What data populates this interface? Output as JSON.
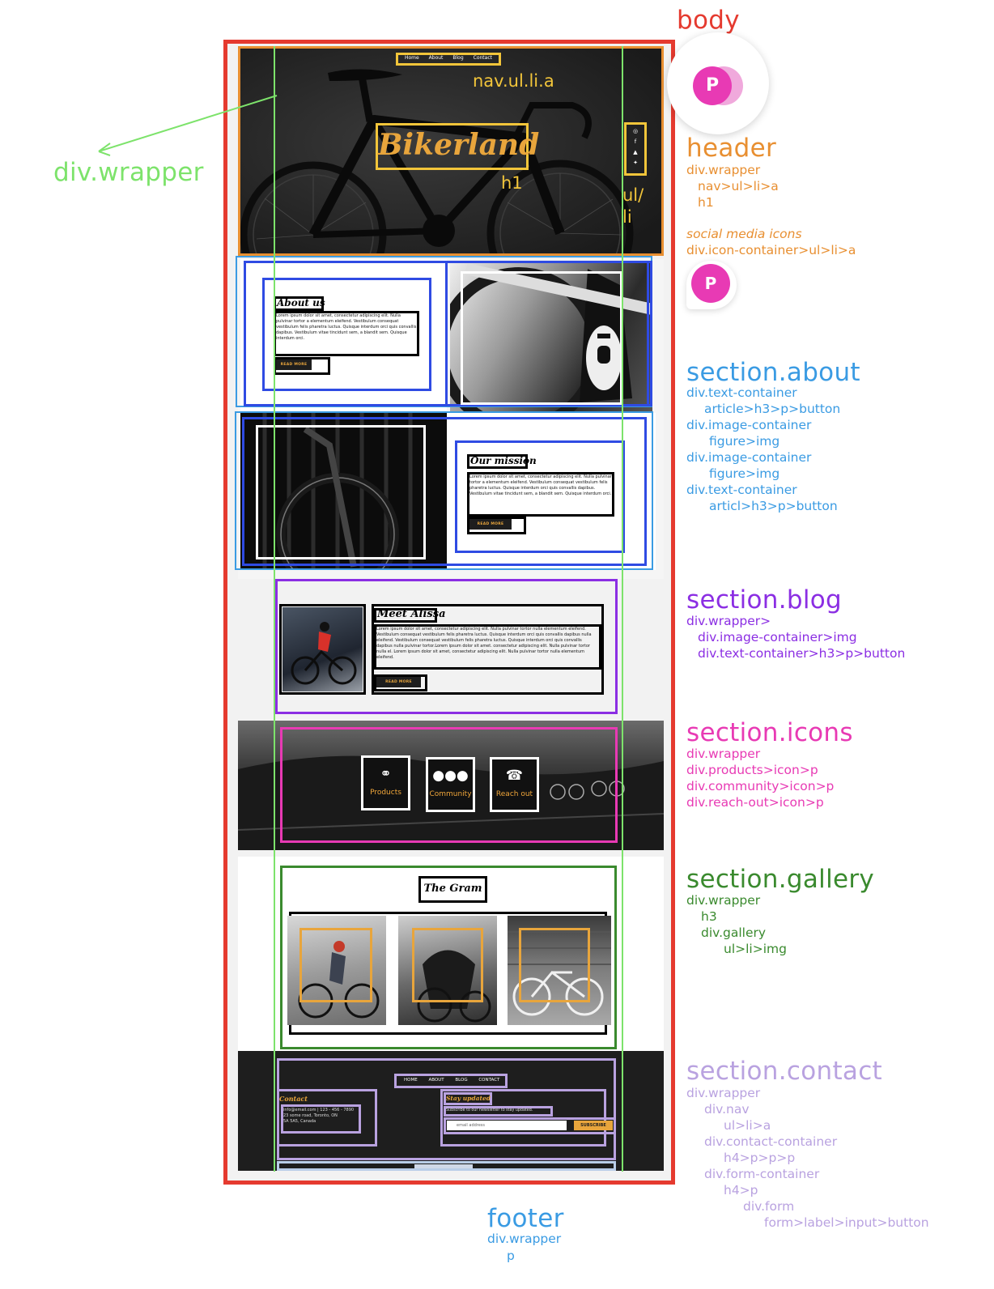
{
  "title": "body",
  "colors": {
    "body": "#e53a2f",
    "header": "#e88f31",
    "wrapper": "#7de36b",
    "about": "#3a9be3",
    "blog": "#8b2ee3",
    "icons": "#e83ab4",
    "gallery": "#3a8a2e",
    "contact": "#b9a2e0",
    "footer": "#3a9be3",
    "outline_yellow": "#f2c53a",
    "outline_blue": "#2f4be3",
    "outline_black": "#000000",
    "accent": "#e8a53c"
  },
  "wrapper_label": "div.wrapper",
  "avatar_letter": "P",
  "header": {
    "title": "header",
    "lines": [
      "div.wrapper",
      "nav>ul>li>a",
      "h1"
    ],
    "social_title": "social media icons",
    "social_line": "div.icon-container>ul>li>a",
    "mock_nav": [
      "Home",
      "About",
      "Blog",
      "Contact"
    ],
    "nav_label": "nav.ul.li.a",
    "logo": "Bikerland",
    "h1_label": "h1",
    "ul_label_1": "ul/",
    "ul_label_2": "li",
    "social_icons": [
      "instagram-icon",
      "facebook-icon",
      "snapchat-icon",
      "twitter-icon"
    ]
  },
  "about": {
    "title": "section.about",
    "lines": [
      "div.text-container",
      "article>h3>p>button",
      "div.image-container",
      "figure>img",
      "div.image-container",
      "figure>img",
      "div.text-container",
      "articl>h3>p>button"
    ],
    "about_heading": "About us",
    "about_text": "Lorem ipsum dolor sit amet, consectetur adipiscing elit. Nulla pulvinar tortor a elementum eleifend. Vestibulum consequat vestibulum felis pharetra luctus. Quisque interdum orci quis convallis dapibus. Vestibulum vitae tincidunt sem, a blandit sem. Quisque interdum orci.",
    "mission_heading": "Our mission",
    "mission_text": "Lorem ipsum dolor sit amet, consectetur adipiscing elit. Nulla pulvinar tortor a elementum eleifend. Vestibulum consequat vestibulum felis pharetra luctus. Quisque interdum orci quis convallis dapibus. Vestibulum vitae tincidunt sem, a blandit sem. Quisque interdum orci.",
    "button": "READ MORE"
  },
  "blog": {
    "title": "section.blog",
    "lines": [
      "div.wrapper>",
      "div.image-container>img",
      "div.text-container>h3>p>button"
    ],
    "heading": "Meet Alissa",
    "text": "Lorem ipsum dolor sit amet, consectetur adipiscing elit. Nulla pulvinar tortor nulla elementum eleifend. Vestibulum consequat vestibulum felis pharetra luctus. Quisque interdum orci quis convallis dapibus nulla eleifend. Vestibulum consequat vestibulum felis pharetra luctus. Quisque interdum orci quis convallis dapibus nulla pulvinar tortor.Lorem ipsum dolor sit amet. consectetur adipiscing elit. Nulla pulvinar tortor nulla el. Lorem ipsum dolor sit amet, consectetur adipiscing elit. Nulla pulvinar tortor nulla elementum eleifend.",
    "button": "READ MORE"
  },
  "icons": {
    "title": "section.icons",
    "lines": [
      "div.wrapper",
      "div.products>icon>p",
      "div.community>icon>p",
      "div.reach-out>icon>p"
    ],
    "tiles": [
      {
        "glyph": "bicycle-icon",
        "label": "Products"
      },
      {
        "glyph": "users-icon",
        "label": "Community"
      },
      {
        "glyph": "phone-icon",
        "label": "Reach out"
      }
    ]
  },
  "gallery": {
    "title": "section.gallery",
    "lines": [
      "div.wrapper",
      "h3",
      "div.gallery",
      "ul>li>img"
    ],
    "heading": "The Gram"
  },
  "contact": {
    "title": "section.contact",
    "lines": [
      "div.wrapper",
      "div.nav",
      "ul>li>a",
      "div.contact-container",
      "h4>p>p>p",
      "div.form-container",
      "h4>p",
      "div.form",
      "form>label>input>button"
    ],
    "nav": [
      "HOME",
      "ABOUT",
      "BLOG",
      "CONTACT"
    ],
    "contact_heading": "Contact",
    "contact_lines": [
      "info@email.com | 123 - 456 - 7890",
      "23 some road,  Toronto, ON",
      "5A 5A5, Canada"
    ],
    "form_heading": "Stay updated",
    "form_text": "Subscribe to our newsletter to stay updated.",
    "input_placeholder": "email address",
    "button": "SUBSCRIBE"
  },
  "footer": {
    "title": "footer",
    "lines": [
      "div.wrapper",
      "p"
    ]
  }
}
